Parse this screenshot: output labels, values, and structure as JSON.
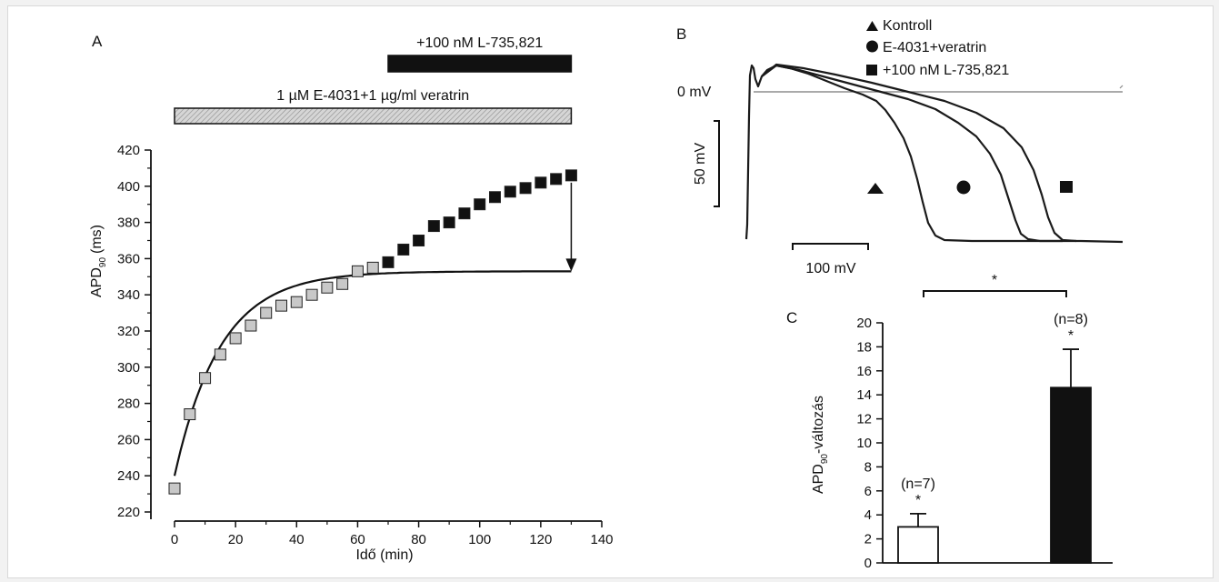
{
  "chart_data": [
    {
      "panel": "A",
      "type": "scatter",
      "xlabel": "Idő (min)",
      "ylabel": "APD",
      "ylabel_sub": "90",
      "ylabel_unit": "(ms)",
      "xlim": [
        0,
        140
      ],
      "ylim": [
        220,
        420
      ],
      "xticks": [
        0,
        20,
        40,
        60,
        80,
        100,
        120,
        140
      ],
      "yticks": [
        220,
        240,
        260,
        280,
        300,
        320,
        340,
        360,
        380,
        400,
        420
      ],
      "bars": [
        {
          "label": "1 µM E-4031+1 µg/ml veratrin",
          "from": 0,
          "to": 130,
          "fill": "hatched-grey"
        },
        {
          "label": "+100 nM L-735,821",
          "from": 70,
          "to": 130,
          "fill": "black"
        }
      ],
      "series": [
        {
          "marker": "grey-square",
          "color": "#c8c8c8",
          "x": [
            0,
            5,
            10,
            15,
            20,
            25,
            30,
            35,
            40,
            45,
            50,
            55,
            60,
            65
          ],
          "y": [
            233,
            274,
            294,
            307,
            316,
            323,
            330,
            334,
            336,
            340,
            344,
            346,
            353,
            355
          ]
        },
        {
          "marker": "black-square",
          "color": "#111111",
          "x": [
            70,
            75,
            80,
            85,
            90,
            95,
            100,
            105,
            110,
            115,
            120,
            125,
            130
          ],
          "y": [
            358,
            365,
            370,
            378,
            380,
            385,
            390,
            394,
            397,
            399,
            402,
            404,
            406
          ]
        }
      ],
      "fit_curve": {
        "type": "exponential",
        "y0": 240,
        "plateau": 353,
        "tau_min": 15
      },
      "arrow": {
        "x": 130,
        "from_y": 406,
        "to_y": 353
      }
    },
    {
      "panel": "B",
      "type": "line",
      "legend": [
        {
          "marker": "triangle",
          "label": "Kontroll"
        },
        {
          "marker": "circle",
          "label": "E-4031+veratrin"
        },
        {
          "marker": "square",
          "label": "+100 nM L-735,821"
        }
      ],
      "zero_label": "0 mV",
      "scale_y_label": "50 mV",
      "scale_x_label": "100 mV"
    },
    {
      "panel": "C",
      "type": "bar",
      "ylabel": "APD",
      "ylabel_sub": "90",
      "ylabel_suffix": "-változás",
      "ylim": [
        0,
        20
      ],
      "yticks": [
        0,
        2,
        4,
        6,
        8,
        10,
        12,
        14,
        16,
        18,
        20
      ],
      "bars": [
        {
          "value": 3.0,
          "error": 1.1,
          "fill": "#ffffff",
          "n_label": "(n=7)",
          "star": "*"
        },
        {
          "value": 14.6,
          "error": 3.2,
          "fill": "#111111",
          "n_label": "(n=8)",
          "star": "*"
        }
      ],
      "bracket_star": "*"
    }
  ]
}
